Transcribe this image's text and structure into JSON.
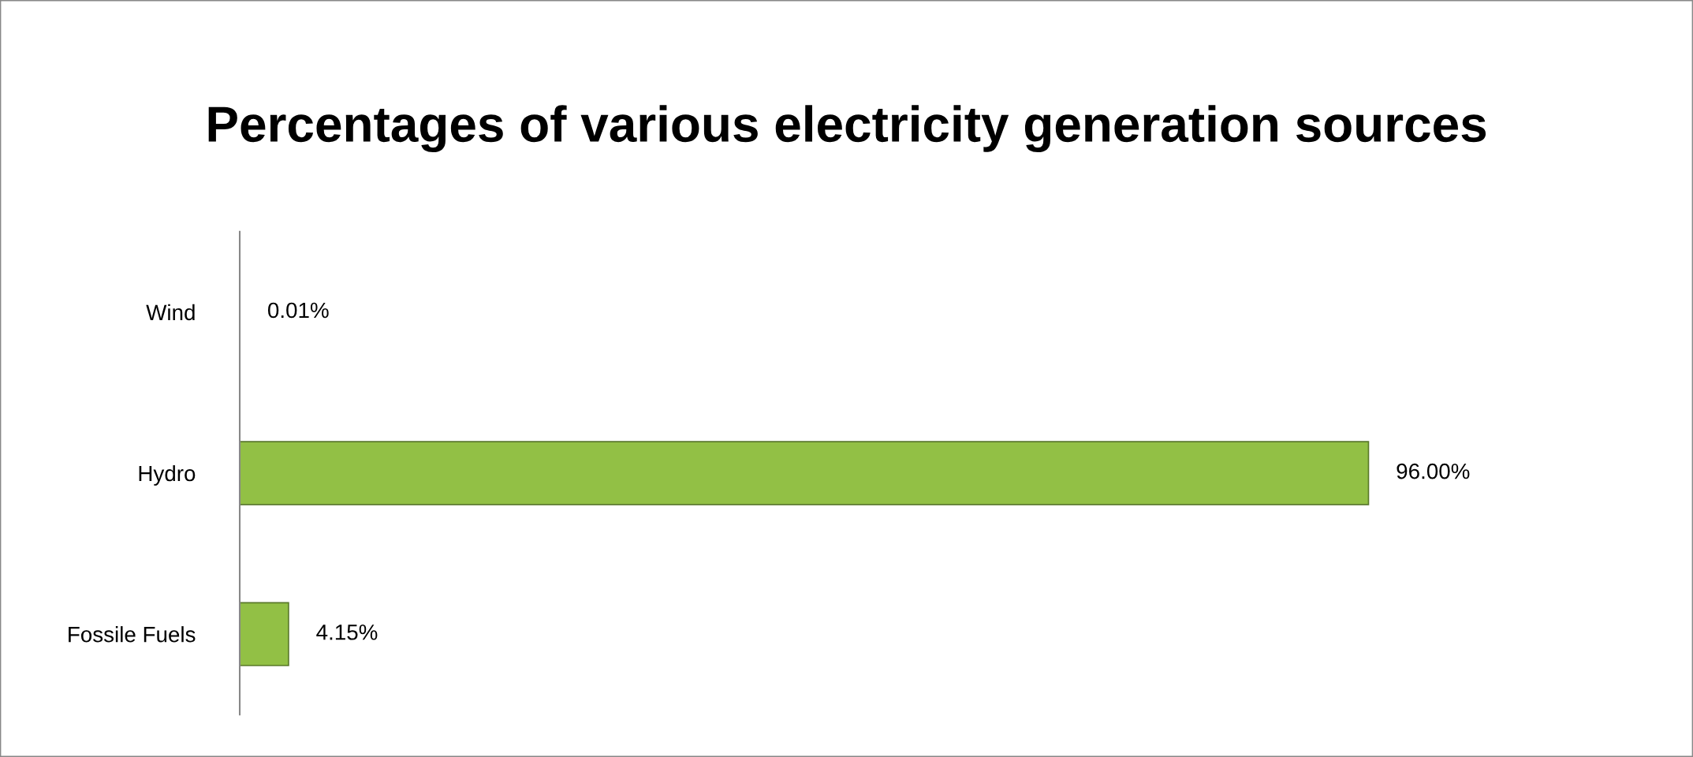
{
  "chart_data": {
    "type": "bar",
    "orientation": "horizontal",
    "title": "Percentages of various electricity generation sources",
    "categories": [
      "Wind",
      "Hydro",
      "Fossile Fuels"
    ],
    "values": [
      0.01,
      96.0,
      4.15
    ],
    "value_labels": [
      "0.01%",
      "96.00%",
      "4.15%"
    ],
    "color": "#92c045",
    "grid": false,
    "legend": false
  }
}
